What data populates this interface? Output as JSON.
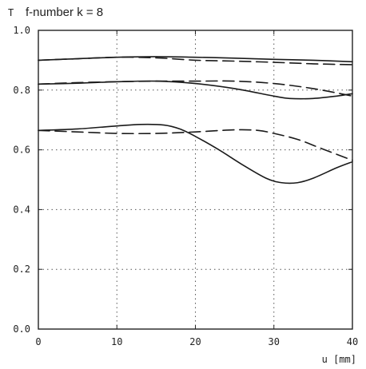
{
  "chart_data": {
    "type": "line",
    "title": "f-number k = 8",
    "ylabel": "T",
    "xlabel": "u [mm]",
    "xlim": [
      0,
      40
    ],
    "ylim": [
      0,
      1.0
    ],
    "xticks": [
      "0",
      "10",
      "20",
      "30",
      "40"
    ],
    "yticks": [
      "0.0",
      "0.2",
      "0.4",
      "0.6",
      "0.8",
      "1.0"
    ],
    "grid": "dotted",
    "series": [
      {
        "style": "solid",
        "x": [
          0,
          5,
          10,
          15,
          20,
          25,
          30,
          35,
          40
        ],
        "values": [
          0.9,
          0.905,
          0.91,
          0.912,
          0.91,
          0.907,
          0.903,
          0.9,
          0.895
        ]
      },
      {
        "style": "dashed",
        "x": [
          0,
          5,
          10,
          15,
          20,
          25,
          30,
          35,
          40
        ],
        "values": [
          0.9,
          0.905,
          0.91,
          0.908,
          0.9,
          0.897,
          0.893,
          0.888,
          0.885
        ]
      },
      {
        "style": "solid",
        "x": [
          0,
          5,
          10,
          15,
          20,
          25,
          30,
          32,
          35,
          38,
          40
        ],
        "values": [
          0.82,
          0.823,
          0.828,
          0.83,
          0.822,
          0.805,
          0.78,
          0.772,
          0.772,
          0.78,
          0.788
        ]
      },
      {
        "style": "dashed",
        "x": [
          0,
          5,
          10,
          15,
          20,
          25,
          30,
          35,
          40
        ],
        "values": [
          0.82,
          0.825,
          0.828,
          0.83,
          0.83,
          0.83,
          0.822,
          0.805,
          0.78
        ]
      },
      {
        "style": "solid",
        "x": [
          0,
          5,
          10,
          13,
          16,
          18,
          20,
          23,
          26,
          29,
          31,
          33,
          35,
          38,
          40
        ],
        "values": [
          0.665,
          0.67,
          0.68,
          0.685,
          0.683,
          0.67,
          0.645,
          0.6,
          0.55,
          0.505,
          0.49,
          0.49,
          0.505,
          0.54,
          0.56
        ]
      },
      {
        "style": "dashed",
        "x": [
          0,
          5,
          10,
          15,
          20,
          25,
          28,
          30,
          33,
          36,
          40
        ],
        "values": [
          0.665,
          0.66,
          0.655,
          0.655,
          0.66,
          0.667,
          0.665,
          0.655,
          0.635,
          0.605,
          0.565
        ]
      }
    ]
  }
}
